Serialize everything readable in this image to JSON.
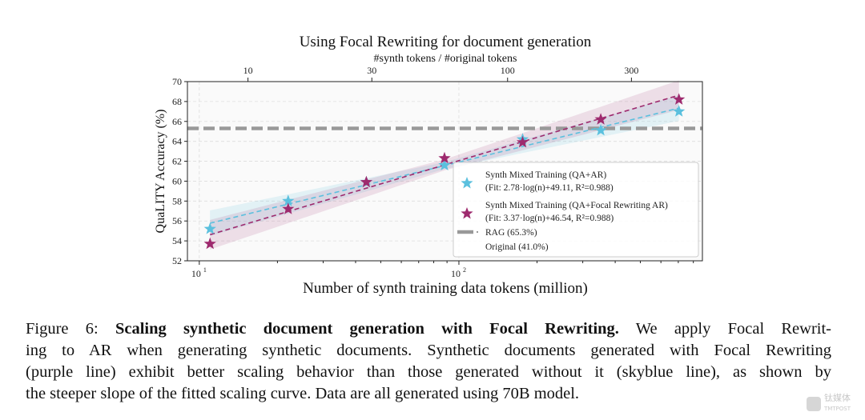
{
  "chart_data": {
    "type": "scatter",
    "title": "Using Focal Rewriting for document generation",
    "xlabel": "Number of synth training data tokens (million)",
    "x2label": "#synth tokens / #original tokens",
    "ylabel": "QuaLITY Accuracy (%)",
    "xscale": "log",
    "xlim": [
      9,
      867
    ],
    "ylim": [
      52,
      70
    ],
    "yticks": [
      52,
      54,
      56,
      58,
      60,
      62,
      64,
      66,
      68,
      70
    ],
    "xticks": [
      {
        "value": 10,
        "label": "10",
        "exp": "1"
      },
      {
        "value": 100,
        "label": "10",
        "exp": "2"
      }
    ],
    "x2ticks": [
      10,
      30,
      100,
      300
    ],
    "x2_ratio_divisor": 1.54,
    "grid": true,
    "legend_position": "lower-right",
    "series": [
      {
        "name": "Synth Mixed Training (QA+AR)",
        "fit_label": "(Fit: 2.78·log(n)+49.11, R²=0.988)",
        "color": "#5bc0de",
        "x": [
          11,
          22,
          44,
          88,
          176,
          352,
          704
        ],
        "y": [
          55.2,
          58.0,
          59.9,
          61.6,
          64.2,
          65.1,
          67.0
        ],
        "fit": {
          "a": 2.78,
          "b": 49.11
        }
      },
      {
        "name": "Synth Mixed Training (QA+Focal Rewriting AR)",
        "fit_label": "(Fit: 3.37·log(n)+46.54, R²=0.988)",
        "color": "#9e2a6e",
        "x": [
          11,
          22,
          44,
          88,
          176,
          352,
          704
        ],
        "y": [
          53.7,
          57.2,
          59.9,
          62.3,
          63.9,
          66.2,
          68.2
        ],
        "fit": {
          "a": 3.37,
          "b": 46.54
        }
      }
    ],
    "hlines": [
      {
        "name": "RAG (65.3%)",
        "y": 65.3,
        "color": "#999999"
      },
      {
        "name": "Original (41.0%)",
        "y": 41.0,
        "color": "#999999"
      }
    ]
  },
  "caption": {
    "label": "Figure 6:",
    "bold": "Scaling synthetic document generation with Focal Rewriting.",
    "line1_rest": "We apply Focal Rewrit-",
    "line2": "ing to AR when generating synthetic documents. Synthetic documents generated with Focal Rewriting",
    "line3": "(purple line) exhibit better scaling behavior than those generated without it (skyblue line), as shown by",
    "line4": "the steeper slope of the fitted scaling curve. Data are all generated using 70B model."
  },
  "watermark": {
    "text_cn": "钛媒体",
    "text_en": "TMTPOST"
  }
}
